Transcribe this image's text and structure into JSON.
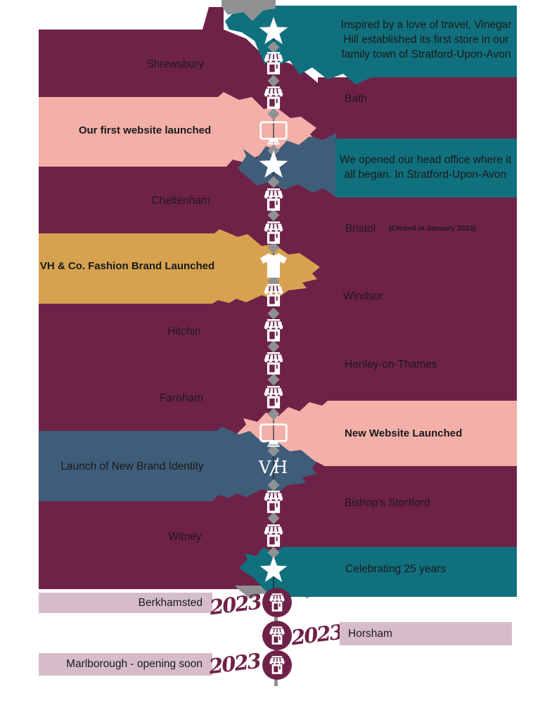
{
  "colors": {
    "maroon": "#6f2248",
    "teal": "#11707e",
    "slate_blue": "#3f5d79",
    "pink": "#f3b0a9",
    "gold": "#d6a250",
    "mauve": "#d6bcc9",
    "gray": "#8f9193",
    "text_ink": "#1a1a1a",
    "icon_white": "#ffffff"
  },
  "center_logo": "VH",
  "rows": [
    {
      "id": "founding",
      "icon": "star-icon",
      "text": "Inspired by a love of travel, Vinegar\nHill established its first store in our\nfamily town of Stratford-Upon-Avon"
    },
    {
      "id": "shrewsbury",
      "icon": "store-icon",
      "text": "Shrewsbury"
    },
    {
      "id": "bath",
      "icon": "store-icon",
      "text": "Bath"
    },
    {
      "id": "first-website",
      "icon": "monitor-icon",
      "text": "Our first website launched"
    },
    {
      "id": "head-office",
      "icon": "star-icon",
      "text": "We opened our head office where it\nall  began.  In  Stratford-Upon-Avon"
    },
    {
      "id": "cheltenham",
      "icon": "store-icon",
      "text": "Cheltenham"
    },
    {
      "id": "bristol",
      "icon": "store-icon",
      "text": "Bristol",
      "note": "(Closed in January 2023)"
    },
    {
      "id": "fashion-brand",
      "icon": "tshirt-icon",
      "text": "VH & Co. Fashion Brand Launched"
    },
    {
      "id": "windsor",
      "icon": "store-icon",
      "text": "Windsor"
    },
    {
      "id": "hitchin",
      "icon": "store-icon",
      "text": "Hitchin"
    },
    {
      "id": "henley",
      "icon": "store-icon",
      "text": "Henley-on-Thames"
    },
    {
      "id": "farnham",
      "icon": "store-icon",
      "text": "Farnham"
    },
    {
      "id": "new-website",
      "icon": "monitor-icon",
      "text": "New Website Launched"
    },
    {
      "id": "brand-identity",
      "icon": "vh-logo",
      "text": "Launch of New Brand Identity"
    },
    {
      "id": "bishops-stortford",
      "icon": "store-icon",
      "text": "Bishop's Stortford"
    },
    {
      "id": "witney",
      "icon": "store-icon",
      "text": "Witney"
    },
    {
      "id": "anniversary",
      "icon": "star-icon",
      "text": "Celebrating 25  years"
    }
  ],
  "recent": [
    {
      "year": "2023",
      "text": "Berkhamsted"
    },
    {
      "year": "2023",
      "text": "Horsham"
    },
    {
      "year": "2023",
      "text": "Marlborough - opening soon"
    }
  ]
}
